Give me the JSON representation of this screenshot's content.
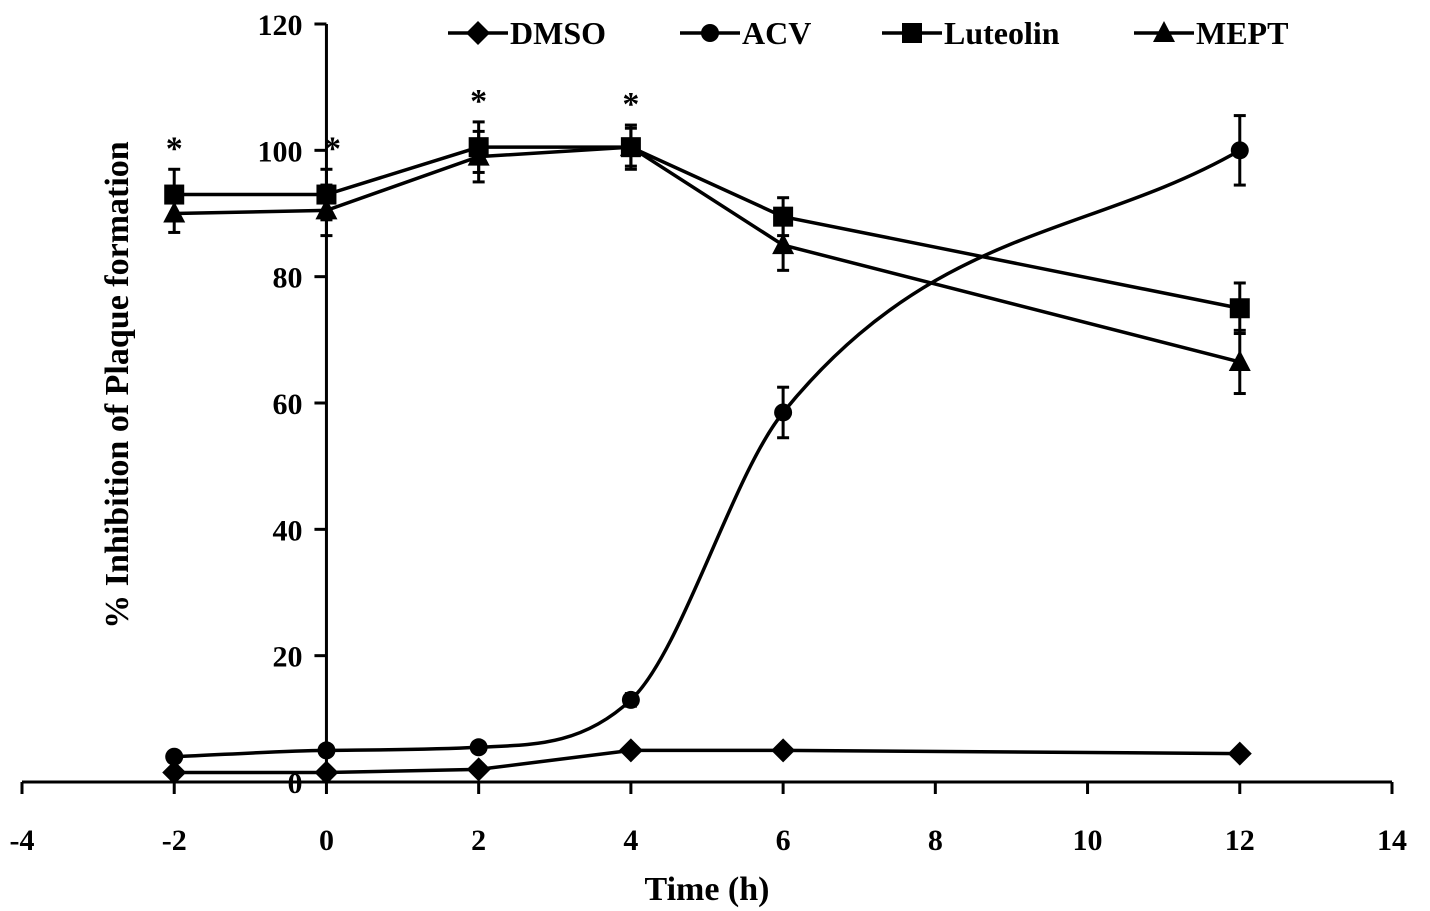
{
  "chart_data": {
    "type": "line",
    "title": "",
    "xlabel": "Time (h)",
    "ylabel": "% Inhibition of Plaque formation",
    "xlim": [
      -4,
      14
    ],
    "ylim": [
      0,
      120
    ],
    "x_ticks": [
      "-4",
      "-2",
      "0",
      "2",
      "4",
      "6",
      "8",
      "10",
      "12",
      "14"
    ],
    "y_ticks": [
      "0",
      "20",
      "40",
      "60",
      "80",
      "100",
      "120"
    ],
    "grid": false,
    "legend_position": "top",
    "x": [
      -2,
      0,
      2,
      4,
      6,
      12
    ],
    "series": [
      {
        "name": "DMSO",
        "marker": "diamond",
        "values": [
          1.5,
          1.5,
          2,
          5,
          5,
          4.5
        ],
        "errors": [
          0,
          0,
          0,
          0,
          0,
          0
        ]
      },
      {
        "name": "ACV",
        "marker": "circle",
        "values": [
          4,
          5,
          5.5,
          13,
          58.5,
          100
        ],
        "errors": [
          0.5,
          0.5,
          0.5,
          1,
          4,
          5.5
        ],
        "smooth": true
      },
      {
        "name": "Luteolin",
        "marker": "square",
        "values": [
          93,
          93,
          100.5,
          100.5,
          89.5,
          75
        ],
        "errors": [
          4,
          4,
          4,
          3.5,
          3,
          4
        ]
      },
      {
        "name": "MEPT",
        "marker": "triangle",
        "values": [
          90,
          90.5,
          99,
          100.5,
          85,
          66.5
        ],
        "errors": [
          3,
          4,
          4,
          3,
          4,
          5
        ]
      }
    ],
    "significance": {
      "symbol": "*",
      "x": [
        -2,
        0,
        2,
        4
      ]
    }
  }
}
